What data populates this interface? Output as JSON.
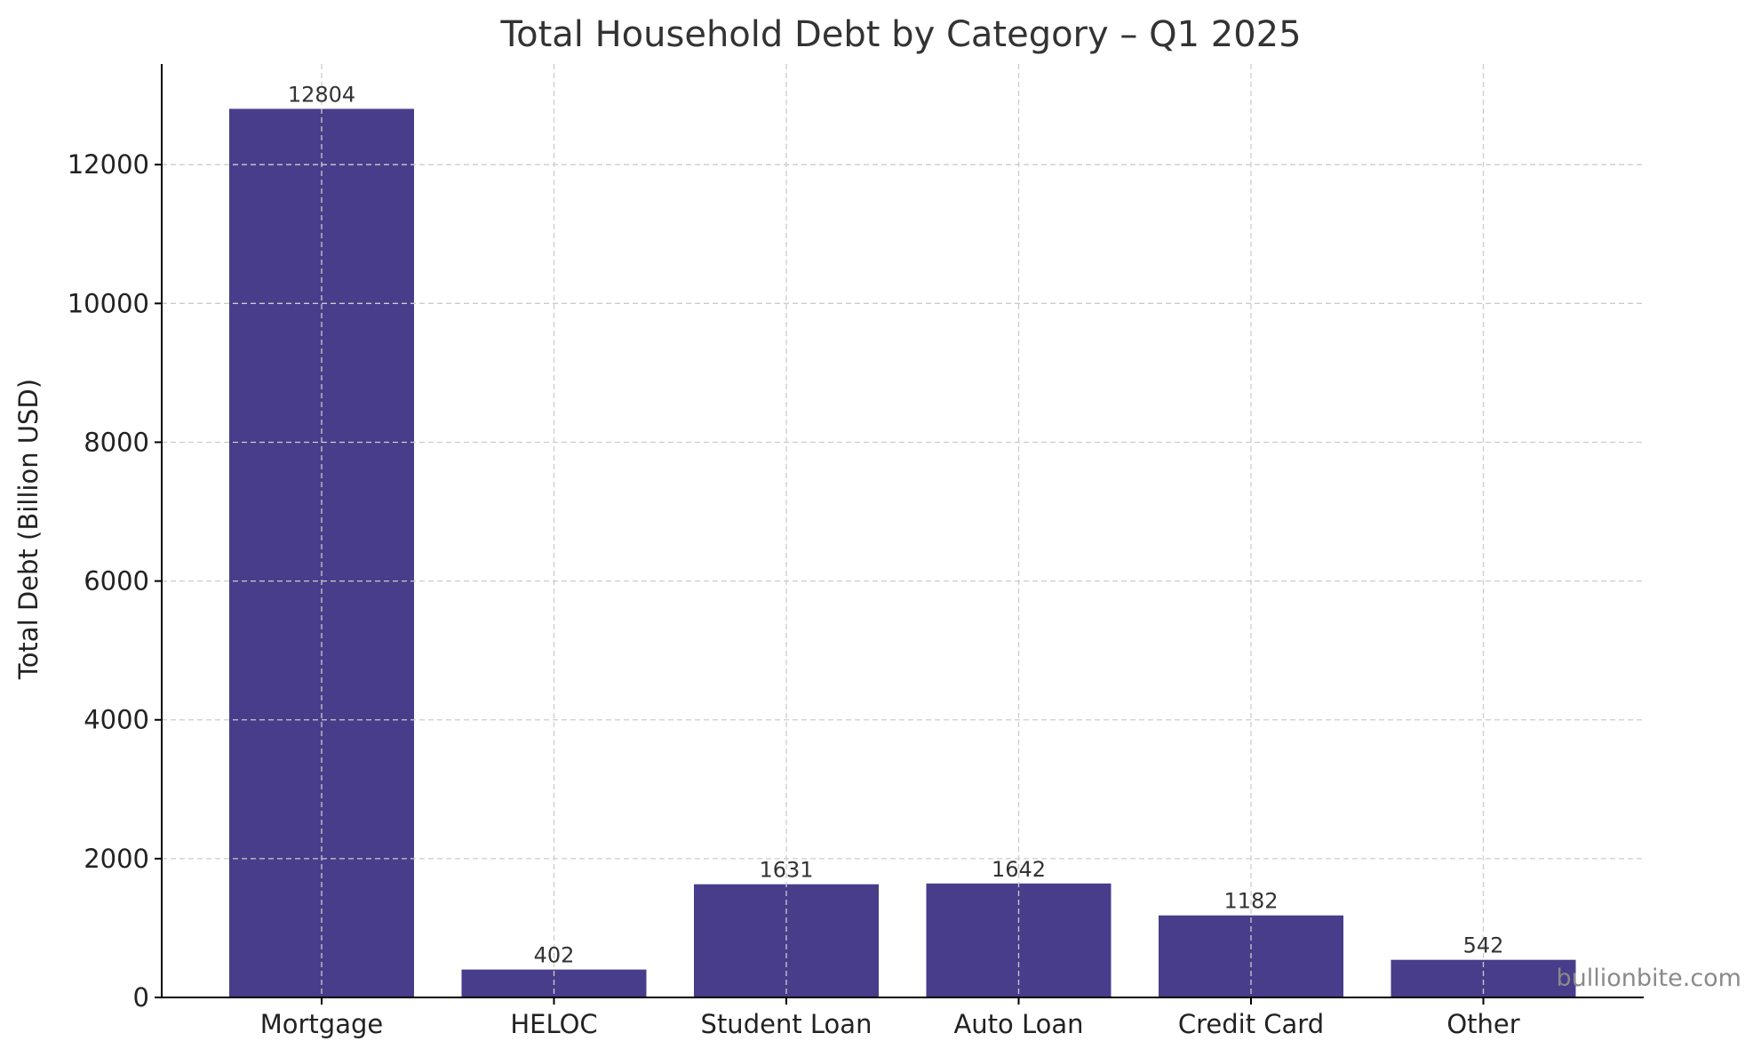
{
  "chart_data": {
    "type": "bar",
    "title": "Total Household Debt by Category – Q1 2025",
    "xlabel": "",
    "ylabel": "Total Debt (Billion USD)",
    "categories": [
      "Mortgage",
      "HELOC",
      "Student Loan",
      "Auto Loan",
      "Credit Card",
      "Other"
    ],
    "values": [
      12804,
      402,
      1631,
      1642,
      1182,
      542
    ],
    "data_labels": [
      "12804",
      "402",
      "1631",
      "1642",
      "1182",
      "542"
    ],
    "ylim": [
      0,
      13450
    ],
    "yticks": [
      0,
      2000,
      4000,
      6000,
      8000,
      10000,
      12000
    ],
    "grid": true,
    "bar_color": "#483d8b",
    "watermark": "bullionbite.com"
  }
}
